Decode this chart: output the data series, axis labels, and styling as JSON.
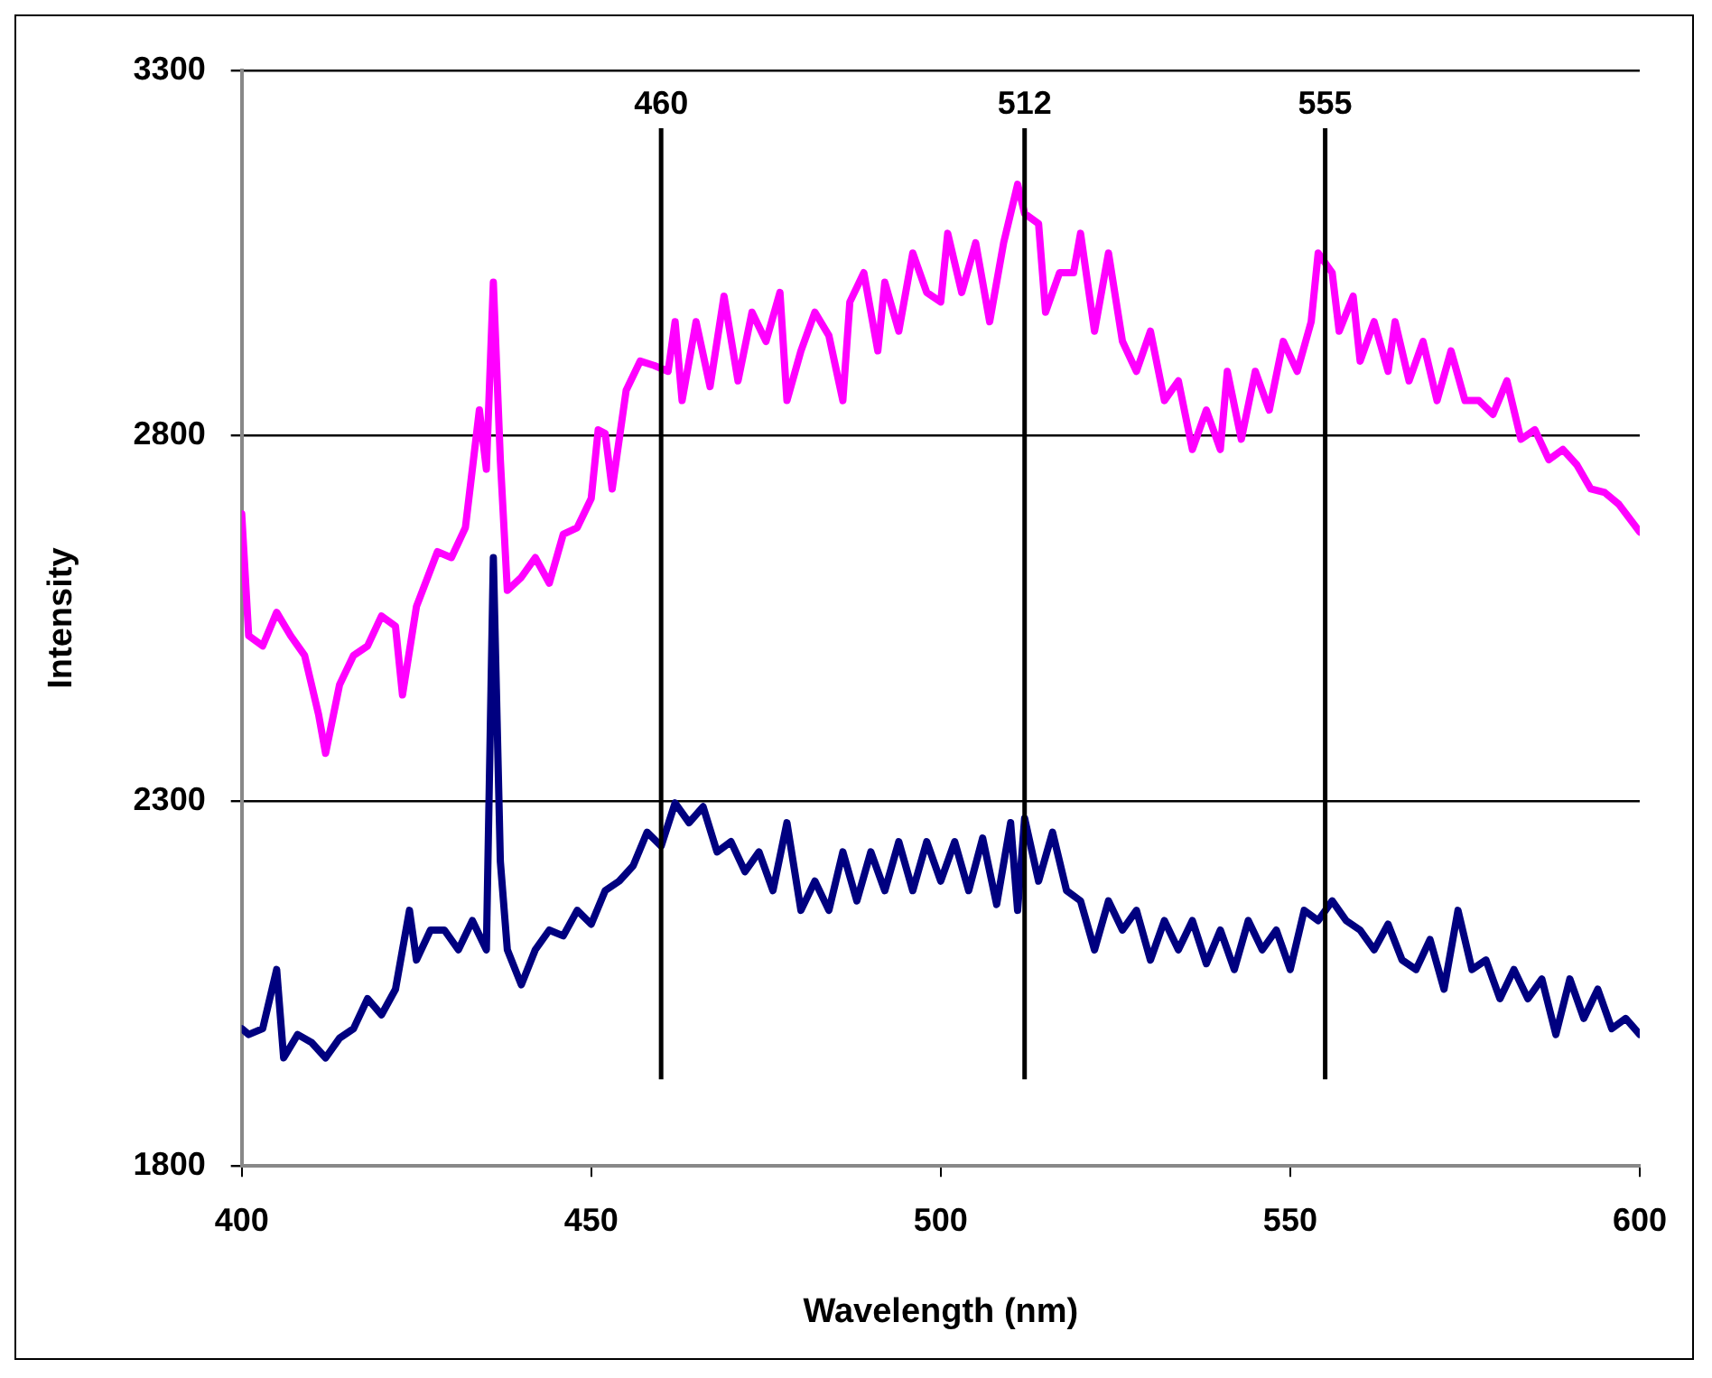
{
  "chart_data": {
    "type": "line",
    "xlabel": "Wavelength (nm)",
    "ylabel": "Intensity",
    "xlim": [
      400,
      600
    ],
    "xticks": [
      400,
      450,
      500,
      550,
      600
    ],
    "ylim": [
      1800,
      3300
    ],
    "yticks": [
      1800,
      2300,
      2800,
      3300
    ],
    "grid": "y",
    "legend": false,
    "marker": "none",
    "line_style": "solid",
    "ref_lines": [
      {
        "axis": "x",
        "value": 460,
        "label": "460",
        "color": "#000000"
      },
      {
        "axis": "x",
        "value": 512,
        "label": "512",
        "color": "#000000"
      },
      {
        "axis": "x",
        "value": 555,
        "label": "555",
        "color": "#000000"
      }
    ],
    "series": [
      {
        "color": "#ff00ff",
        "x": [
          400,
          401,
          403,
          405,
          407,
          409,
          411,
          412,
          414,
          416,
          418,
          420,
          422,
          423,
          425,
          428,
          430,
          432,
          434,
          435,
          436,
          437,
          438,
          440,
          442,
          444,
          446,
          448,
          450,
          451,
          452,
          453,
          455,
          457,
          459,
          461,
          462,
          463,
          465,
          467,
          469,
          471,
          473,
          475,
          477,
          478,
          480,
          482,
          484,
          486,
          487,
          489,
          491,
          492,
          494,
          496,
          498,
          500,
          501,
          503,
          505,
          507,
          509,
          511,
          512,
          514,
          515,
          517,
          519,
          520,
          522,
          524,
          526,
          528,
          530,
          532,
          534,
          536,
          538,
          540,
          541,
          543,
          545,
          547,
          549,
          551,
          553,
          554,
          556,
          557,
          559,
          560,
          562,
          564,
          565,
          567,
          569,
          571,
          573,
          575,
          577,
          579,
          581,
          583,
          585,
          587,
          589,
          591,
          593,
          595,
          597,
          600
        ],
        "values": [
          2693,
          2526,
          2512,
          2558,
          2526,
          2499,
          2418,
          2365,
          2459,
          2499,
          2512,
          2553,
          2539,
          2445,
          2566,
          2641,
          2633,
          2674,
          2835,
          2754,
          3010,
          2767,
          2588,
          2606,
          2633,
          2598,
          2665,
          2674,
          2714,
          2808,
          2803,
          2727,
          2862,
          2902,
          2896,
          2888,
          2956,
          2848,
          2956,
          2867,
          2991,
          2875,
          2969,
          2929,
          2996,
          2848,
          2916,
          2969,
          2937,
          2848,
          2983,
          3023,
          2916,
          3010,
          2943,
          3050,
          2996,
          2983,
          3077,
          2996,
          3064,
          2956,
          3064,
          3144,
          3104,
          3090,
          2969,
          3023,
          3023,
          3077,
          2943,
          3050,
          2929,
          2888,
          2943,
          2848,
          2875,
          2781,
          2835,
          2781,
          2888,
          2795,
          2888,
          2835,
          2929,
          2888,
          2956,
          3050,
          3023,
          2943,
          2991,
          2902,
          2956,
          2888,
          2956,
          2875,
          2929,
          2848,
          2916,
          2848,
          2848,
          2829,
          2875,
          2795,
          2808,
          2767,
          2781,
          2760,
          2727,
          2722,
          2706,
          2668
        ]
      },
      {
        "color": "#000080",
        "x": [
          400,
          401,
          403,
          405,
          406,
          408,
          410,
          412,
          414,
          416,
          418,
          420,
          422,
          424,
          425,
          427,
          429,
          431,
          433,
          435,
          436,
          437,
          438,
          440,
          442,
          444,
          446,
          448,
          450,
          452,
          454,
          456,
          458,
          460,
          462,
          464,
          466,
          468,
          470,
          472,
          474,
          476,
          478,
          480,
          482,
          484,
          486,
          488,
          490,
          492,
          494,
          496,
          498,
          500,
          502,
          504,
          506,
          508,
          510,
          511,
          512,
          514,
          516,
          518,
          520,
          522,
          524,
          526,
          528,
          530,
          532,
          534,
          536,
          538,
          540,
          542,
          544,
          546,
          548,
          550,
          552,
          554,
          556,
          558,
          560,
          562,
          564,
          566,
          568,
          570,
          572,
          574,
          576,
          578,
          580,
          582,
          584,
          586,
          588,
          590,
          592,
          594,
          596,
          598,
          600
        ],
        "values": [
          1988,
          1980,
          1988,
          2069,
          1948,
          1980,
          1969,
          1948,
          1975,
          1988,
          2029,
          2007,
          2042,
          2150,
          2082,
          2123,
          2123,
          2096,
          2136,
          2096,
          2633,
          2217,
          2096,
          2048,
          2096,
          2123,
          2115,
          2150,
          2131,
          2177,
          2190,
          2211,
          2257,
          2238,
          2297,
          2270,
          2292,
          2230,
          2244,
          2203,
          2230,
          2177,
          2270,
          2150,
          2190,
          2150,
          2230,
          2163,
          2230,
          2177,
          2244,
          2177,
          2244,
          2190,
          2244,
          2177,
          2249,
          2158,
          2270,
          2150,
          2276,
          2190,
          2257,
          2177,
          2163,
          2096,
          2163,
          2123,
          2150,
          2082,
          2136,
          2096,
          2136,
          2077,
          2123,
          2069,
          2136,
          2096,
          2123,
          2069,
          2150,
          2136,
          2163,
          2136,
          2123,
          2096,
          2131,
          2082,
          2069,
          2110,
          2042,
          2150,
          2069,
          2082,
          2029,
          2069,
          2029,
          2056,
          1980,
          2056,
          2002,
          2042,
          1988,
          2002,
          1980
        ]
      }
    ]
  }
}
